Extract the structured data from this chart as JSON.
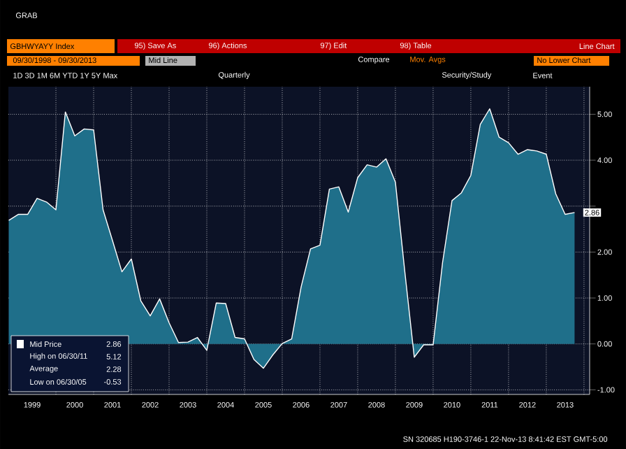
{
  "chart_data": {
    "type": "area",
    "title": "GBHWYAYY Index",
    "subtitle": "09/30/1998 - 09/30/2013",
    "x": [
      1998.75,
      1999.0,
      1999.25,
      1999.5,
      1999.75,
      2000.0,
      2000.25,
      2000.5,
      2000.75,
      2001.0,
      2001.25,
      2001.5,
      2001.75,
      2002.0,
      2002.25,
      2002.5,
      2002.75,
      2003.0,
      2003.25,
      2003.5,
      2003.75,
      2004.0,
      2004.25,
      2004.5,
      2004.75,
      2005.0,
      2005.25,
      2005.5,
      2005.75,
      2006.0,
      2006.25,
      2006.5,
      2006.75,
      2007.0,
      2007.25,
      2007.5,
      2007.75,
      2008.0,
      2008.25,
      2008.5,
      2008.75,
      2009.0,
      2009.25,
      2009.5,
      2009.75,
      2010.0,
      2010.25,
      2010.5,
      2010.75,
      2011.0,
      2011.25,
      2011.5,
      2011.75,
      2012.0,
      2012.25,
      2012.5,
      2012.75,
      2013.0,
      2013.25,
      2013.5,
      2013.75
    ],
    "series": [
      {
        "color": "#1f6f8a",
        "values": [
          2.69,
          2.82,
          2.82,
          3.17,
          3.09,
          2.92,
          5.05,
          4.53,
          4.68,
          4.66,
          2.92,
          2.25,
          1.57,
          1.85,
          0.94,
          0.61,
          0.98,
          0.46,
          0.03,
          0.04,
          0.14,
          -0.14,
          0.89,
          0.88,
          0.14,
          0.11,
          -0.34,
          -0.53,
          -0.24,
          0.01,
          0.11,
          1.24,
          2.07,
          2.15,
          3.37,
          3.42,
          2.87,
          3.62,
          3.9,
          3.85,
          4.03,
          3.52,
          1.57,
          -0.29,
          -0.02,
          -0.02,
          1.77,
          3.12,
          3.29,
          3.67,
          4.78,
          5.12,
          4.5,
          4.38,
          4.13,
          4.23,
          4.2,
          4.13,
          3.27,
          2.82,
          2.86
        ]
      }
    ],
    "xlim": [
      1998.74,
      2014.15
    ],
    "ylim": [
      -1.1,
      5.6
    ],
    "xticks": [
      {
        "value": 1999.37,
        "label": "1999"
      },
      {
        "value": 2000.5,
        "label": "2000"
      },
      {
        "value": 2001.5,
        "label": "2001"
      },
      {
        "value": 2002.5,
        "label": "2002"
      },
      {
        "value": 2003.5,
        "label": "2003"
      },
      {
        "value": 2004.5,
        "label": "2004"
      },
      {
        "value": 2005.5,
        "label": "2005"
      },
      {
        "value": 2006.5,
        "label": "2006"
      },
      {
        "value": 2007.5,
        "label": "2007"
      },
      {
        "value": 2008.5,
        "label": "2008"
      },
      {
        "value": 2009.5,
        "label": "2009"
      },
      {
        "value": 2010.5,
        "label": "2010"
      },
      {
        "value": 2011.5,
        "label": "2011"
      },
      {
        "value": 2012.5,
        "label": "2012"
      },
      {
        "value": 2013.5,
        "label": "2013"
      },
      {
        "value": 2000,
        "label": null
      },
      {
        "value": 2001,
        "label": null
      },
      {
        "value": 2002,
        "label": null
      },
      {
        "value": 2003,
        "label": null
      },
      {
        "value": 2004,
        "label": null
      },
      {
        "value": 2005,
        "label": null
      },
      {
        "value": 2006,
        "label": null
      },
      {
        "value": 2007,
        "label": null
      },
      {
        "value": 2008,
        "label": null
      },
      {
        "value": 2009,
        "label": null
      },
      {
        "value": 2010,
        "label": null
      },
      {
        "value": 2011,
        "label": null
      },
      {
        "value": 2012,
        "label": null
      },
      {
        "value": 2013,
        "label": null
      },
      {
        "value": 2014,
        "label": null
      }
    ],
    "yticks": [
      {
        "value": -1,
        "label": "-1.00"
      },
      {
        "value": 0,
        "label": "0.00"
      },
      {
        "value": 1,
        "label": "1.00"
      },
      {
        "value": 2,
        "label": "2.00"
      },
      {
        "value": 3,
        "label": null
      },
      {
        "value": 4,
        "label": "4.00"
      },
      {
        "value": 5,
        "label": "5.00"
      }
    ],
    "grid": true,
    "annotations": [
      "GRAB",
      "95) Save As",
      "96) Actions",
      "97) Edit",
      "98) Table",
      "Line Chart",
      "Mid Line",
      "Compare",
      "Mov. Avgs",
      "No Lower Chart",
      "1D 3D 1M 6M YTD 1Y 5Y Max",
      "Quarterly",
      "Security/Study",
      "Event",
      "Mid Price",
      "2.86",
      "High on 06/30/11",
      "5.12",
      "Average",
      "2.28",
      "Low on 06/30/05",
      "-0.53",
      {
        "text": "2.86",
        "x": 2013.75,
        "y": 2.86
      },
      "SN 320685 H190-3746-1 22-Nov-13 8:41:42 EST GMT-5:00"
    ]
  }
}
